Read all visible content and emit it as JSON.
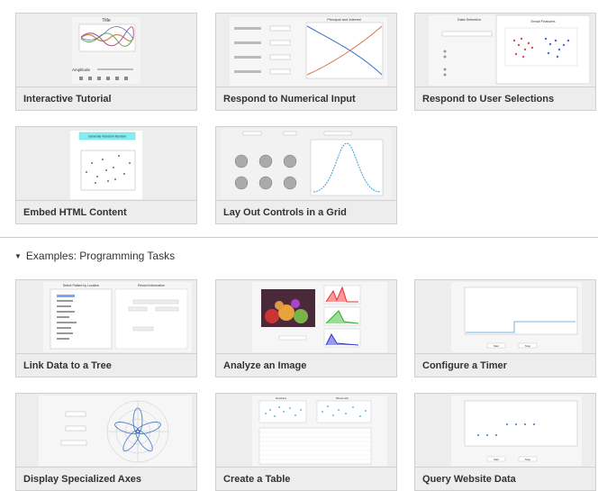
{
  "cards_top": [
    {
      "caption": "Interactive Tutorial",
      "thumb_title": "Title",
      "thumb_label": "Amplitude"
    },
    {
      "caption": "Respond to Numerical Input",
      "thumb_title": "Principal and Interest"
    },
    {
      "caption": "Respond to User Selections",
      "thumb_title": "Data Selection",
      "thumb_title2": "Email Features"
    },
    {
      "caption": "Embed HTML Content",
      "thumb_button": "Generate Random Number"
    },
    {
      "caption": "Lay Out Controls in a Grid"
    }
  ],
  "section": {
    "title": "Examples: Programming Tasks"
  },
  "cards_bottom": [
    {
      "caption": "Link Data to a Tree",
      "thumb_title": "Select Patient by Location",
      "thumb_title2": "Record Information"
    },
    {
      "caption": "Analyze an Image"
    },
    {
      "caption": "Configure a Timer",
      "thumb_btn1": "Start",
      "thumb_btn2": "Stop"
    },
    {
      "caption": "Display Specialized Axes"
    },
    {
      "caption": "Create a Table",
      "thumb_title": "Numbers",
      "thumb_title2": "Movement"
    },
    {
      "caption": "Query Website Data",
      "thumb_btn1": "Start",
      "thumb_btn2": "Stop"
    }
  ],
  "colors": {
    "card_bg": "#ededed",
    "border": "#cfcfcf",
    "accent_blue": "#3b73c9",
    "accent_red": "#d9534f",
    "html_button": "#86eef0"
  },
  "icons": {
    "section_caret": "caret-down-icon"
  }
}
